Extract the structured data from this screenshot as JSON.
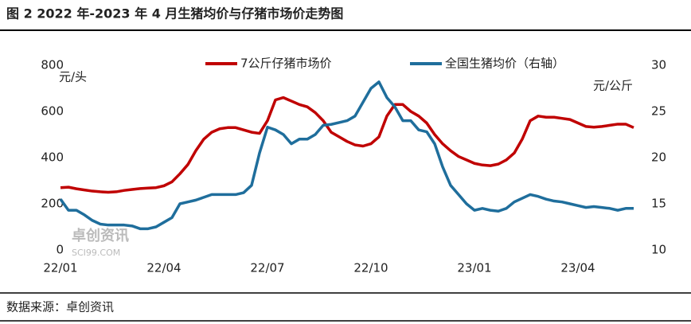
{
  "chart_data": {
    "type": "line",
    "title": "图 2 2022 年-2023 年 4 月生猪均价与仔猪市场价走势图",
    "source": "数据来源：卓创资讯",
    "watermark": [
      "卓创资讯",
      "SCI99.COM"
    ],
    "y_label": "元/头",
    "y2_label": "元/公斤",
    "categories": [
      "22/01",
      null,
      null,
      null,
      null,
      null,
      null,
      null,
      null,
      null,
      null,
      null,
      null,
      "22/04",
      null,
      null,
      null,
      null,
      null,
      null,
      null,
      null,
      null,
      null,
      null,
      null,
      "22/07",
      null,
      null,
      null,
      null,
      null,
      null,
      null,
      null,
      null,
      null,
      null,
      null,
      "22/10",
      null,
      null,
      null,
      null,
      null,
      null,
      null,
      null,
      null,
      null,
      null,
      null,
      "23/01",
      null,
      null,
      null,
      null,
      null,
      null,
      null,
      null,
      null,
      null,
      null,
      null,
      "23/04",
      null,
      null,
      null,
      null,
      null,
      null,
      null
    ],
    "series": [
      {
        "name": "7公斤仔猪市场价",
        "color": "#c00000",
        "values": [
          270,
          272,
          265,
          260,
          255,
          252,
          250,
          252,
          258,
          262,
          266,
          268,
          270,
          278,
          295,
          330,
          370,
          430,
          480,
          510,
          525,
          530,
          530,
          520,
          510,
          505,
          560,
          650,
          660,
          645,
          630,
          620,
          595,
          560,
          510,
          490,
          470,
          455,
          450,
          460,
          490,
          580,
          630,
          630,
          600,
          580,
          550,
          500,
          460,
          430,
          405,
          390,
          375,
          368,
          365,
          372,
          390,
          420,
          480,
          560,
          580,
          575,
          575,
          570,
          565,
          550,
          535,
          532,
          535,
          540,
          545,
          545,
          530
        ]
      },
      {
        "name": "全国生猪均价（右轴）",
        "color": "#1f6e9c",
        "axis": "y2",
        "values": [
          15.5,
          14.3,
          14.3,
          13.8,
          13.2,
          12.8,
          12.7,
          12.7,
          12.7,
          12.6,
          12.3,
          12.3,
          12.5,
          13.0,
          13.5,
          15.0,
          15.2,
          15.4,
          15.7,
          16.0,
          16.0,
          16.0,
          16.0,
          16.2,
          17.0,
          20.5,
          23.3,
          23.0,
          22.5,
          21.5,
          22.0,
          22.0,
          22.5,
          23.5,
          23.6,
          23.8,
          24.0,
          24.5,
          26.0,
          27.5,
          28.2,
          26.5,
          25.5,
          24.0,
          24.0,
          23.0,
          22.8,
          21.5,
          19.0,
          17.0,
          16.0,
          15.0,
          14.3,
          14.5,
          14.3,
          14.2,
          14.5,
          15.2,
          15.6,
          16.0,
          15.8,
          15.5,
          15.3,
          15.2,
          15.0,
          14.8,
          14.6,
          14.7,
          14.6,
          14.5,
          14.3,
          14.5,
          14.5
        ]
      }
    ],
    "ylim": [
      0,
      800
    ],
    "yticks": [
      0,
      200,
      400,
      600,
      800
    ],
    "y2lim": [
      10,
      30
    ],
    "y2ticks": [
      10,
      15,
      20,
      25,
      30
    ],
    "grid": false,
    "legend": "top"
  }
}
